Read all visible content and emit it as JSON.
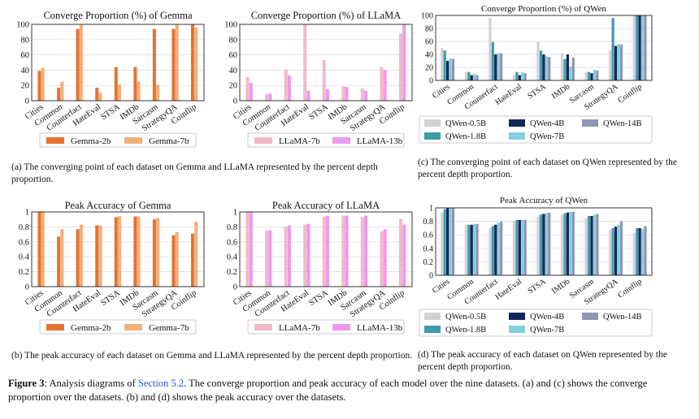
{
  "figure": {
    "label": "Figure 3",
    "text_before": ": Analysis diagrams of ",
    "section_link": "Section 5.2",
    "text_after": ". The converge proportion and peak accuracy of each model over the nine datasets. (a) and (c) shows the converge proportion over the datasets. (b) and (d) shows the peak accuracy over the datasets."
  },
  "captions": {
    "a": "(a) The converging point of each dataset on Gemma and LLaMA represented by the percent depth proportion.",
    "b": "(b) The peak accuracy of each dataset on Gemma and LLaMA represented by the percent depth proportion.",
    "c": "(c) The converging point of each dataset on QWen represented by the percent depth proportion.",
    "d": "(d) The peak accuracy of each dataset on QWen represented by the percent depth proportion."
  },
  "colors": {
    "gemma_2b": "#e4732f",
    "gemma_7b": "#f2b07b",
    "llama_7b": "#f2b9c9",
    "llama_13b": "#ec99ec",
    "qwen_0_5b": "#d2d2d2",
    "qwen_1_8b": "#3f9aae",
    "qwen_4b": "#13255a",
    "qwen_7b": "#82d0dc",
    "qwen_14b": "#8e96b2"
  },
  "chart_data": [
    {
      "id": "gemma_converge",
      "type": "bar",
      "title": "Converge Proportion (%) of Gemma",
      "categories": [
        "Cities",
        "Common",
        "Counterfact",
        "HateEval",
        "STSA",
        "IMDb",
        "Sarcasm",
        "StrategyQA",
        "Coinflip"
      ],
      "ylim": [
        0,
        100
      ],
      "yticks": [
        "0",
        "20",
        "40",
        "60",
        "80",
        "100"
      ],
      "ytick_values": [
        0,
        20,
        40,
        60,
        80,
        100
      ],
      "series": [
        {
          "name": "Gemma-2b",
          "color": "#e4732f",
          "values": [
            39,
            17,
            94,
            17,
            44,
            44,
            94,
            94,
            100
          ]
        },
        {
          "name": "Gemma-7b",
          "color": "#f2b07b",
          "values": [
            43,
            25,
            100,
            11,
            21,
            25,
            21,
            100,
            96
          ]
        }
      ]
    },
    {
      "id": "llama_converge",
      "type": "bar",
      "title": "Converge Proportion (%) of LLaMA",
      "categories": [
        "Cities",
        "Common",
        "Counterfact",
        "HateEval",
        "STSA",
        "IMDb",
        "Sarcasm",
        "StrategyQA",
        "Coinflip"
      ],
      "ylim": [
        0,
        100
      ],
      "yticks": [
        "0",
        "20",
        "40",
        "60",
        "80",
        "100"
      ],
      "ytick_values": [
        0,
        20,
        40,
        60,
        80,
        100
      ],
      "series": [
        {
          "name": "LLaMA-7b",
          "color": "#f2b9c9",
          "values": [
            31,
            9,
            41,
            100,
            53,
            19,
            16,
            44,
            88
          ]
        },
        {
          "name": "LLaMA-13b",
          "color": "#ec99ec",
          "values": [
            23,
            9,
            33,
            13,
            15,
            18,
            13,
            40,
            100
          ]
        }
      ]
    },
    {
      "id": "qwen_converge",
      "type": "bar",
      "title": "Converge Proportion (%) of QWen",
      "categories": [
        "Cities",
        "Common",
        "Counterfact",
        "HateEval",
        "STSA",
        "IMDb",
        "Sarcasm",
        "StrategyQA",
        "Coinflip"
      ],
      "ylim": [
        0,
        100
      ],
      "yticks": [
        "0",
        "20",
        "40",
        "60",
        "80",
        "100"
      ],
      "ytick_values": [
        0,
        20,
        40,
        60,
        80,
        100
      ],
      "series": [
        {
          "name": "QWen-0.5B",
          "color": "#d2d2d2",
          "values": [
            50,
            13,
            96,
            8,
            59,
            42,
            13,
            46,
            100
          ]
        },
        {
          "name": "QWen-1.8B",
          "color": "#3f9aae",
          "values": [
            46,
            13,
            59,
            13,
            46,
            33,
            13,
            96,
            100
          ]
        },
        {
          "name": "QWen-4B",
          "color": "#13255a",
          "values": [
            30,
            8,
            40,
            8,
            40,
            40,
            11,
            53,
            100
          ]
        },
        {
          "name": "QWen-7B",
          "color": "#82d0dc",
          "values": [
            34,
            10,
            42,
            13,
            37,
            21,
            16,
            56,
            100
          ]
        },
        {
          "name": "QWen-14B",
          "color": "#8e96b2",
          "values": [
            33,
            8,
            42,
            11,
            36,
            35,
            15,
            55,
            100
          ]
        }
      ]
    },
    {
      "id": "gemma_peak",
      "type": "bar",
      "title": "Peak Accuracy of Gemma",
      "categories": [
        "Cities",
        "Common",
        "Counterfact",
        "HateEval",
        "STSA",
        "IMDb",
        "Sarcasm",
        "StrategyQA",
        "Coinflip"
      ],
      "ylim": [
        0,
        1
      ],
      "yticks": [
        "0",
        "0.2",
        "0.4",
        "0.6",
        "0.8",
        "1"
      ],
      "ytick_values": [
        0,
        0.2,
        0.4,
        0.6,
        0.8,
        1
      ],
      "series": [
        {
          "name": "Gemma-2b",
          "color": "#e4732f",
          "values": [
            1.0,
            0.67,
            0.77,
            0.82,
            0.93,
            0.94,
            0.9,
            0.69,
            0.71
          ]
        },
        {
          "name": "Gemma-7b",
          "color": "#f2b07b",
          "values": [
            1.0,
            0.77,
            0.83,
            0.82,
            0.94,
            0.94,
            0.92,
            0.73,
            0.87
          ]
        }
      ]
    },
    {
      "id": "llama_peak",
      "type": "bar",
      "title": "Peak Accuracy of LLaMA",
      "categories": [
        "Cities",
        "Common",
        "Counterfact",
        "HateEval",
        "STSA",
        "IMDb",
        "Sarcasm",
        "StrategyQA",
        "Coinflip"
      ],
      "ylim": [
        0,
        1
      ],
      "yticks": [
        "0",
        "0.2",
        "0.4",
        "0.6",
        "0.8",
        "1"
      ],
      "ytick_values": [
        0,
        0.2,
        0.4,
        0.6,
        0.8,
        1
      ],
      "series": [
        {
          "name": "LLaMA-7b",
          "color": "#f2b9c9",
          "values": [
            1.0,
            0.75,
            0.8,
            0.83,
            0.94,
            0.95,
            0.93,
            0.74,
            0.91
          ]
        },
        {
          "name": "LLaMA-13b",
          "color": "#ec99ec",
          "values": [
            1.0,
            0.75,
            0.82,
            0.84,
            0.95,
            0.95,
            0.95,
            0.77,
            0.83
          ]
        }
      ]
    },
    {
      "id": "qwen_peak",
      "type": "bar",
      "title": "Peak Accuracy of QWen",
      "categories": [
        "Cities",
        "Common",
        "Counterfact",
        "HateEval",
        "STSA",
        "IMDb",
        "Sarcasm",
        "StrategyQA",
        "Coinflip"
      ],
      "ylim": [
        0,
        1
      ],
      "yticks": [
        "0",
        "0.2",
        "0.4",
        "0.6",
        "0.8",
        "1"
      ],
      "ytick_values": [
        0,
        0.2,
        0.4,
        0.6,
        0.8,
        1
      ],
      "series": [
        {
          "name": "QWen-0.5B",
          "color": "#d2d2d2",
          "values": [
            0.93,
            0.75,
            0.7,
            0.8,
            0.87,
            0.9,
            0.85,
            0.67,
            0.63
          ]
        },
        {
          "name": "QWen-1.8B",
          "color": "#3f9aae",
          "values": [
            0.98,
            0.75,
            0.73,
            0.82,
            0.9,
            0.92,
            0.88,
            0.7,
            0.7
          ]
        },
        {
          "name": "QWen-4B",
          "color": "#13255a",
          "values": [
            1.0,
            0.75,
            0.75,
            0.82,
            0.91,
            0.93,
            0.88,
            0.72,
            0.7
          ]
        },
        {
          "name": "QWen-7B",
          "color": "#82d0dc",
          "values": [
            1.0,
            0.76,
            0.78,
            0.82,
            0.92,
            0.94,
            0.9,
            0.75,
            0.69
          ]
        },
        {
          "name": "QWen-14B",
          "color": "#8e96b2",
          "values": [
            1.0,
            0.76,
            0.8,
            0.82,
            0.93,
            0.94,
            0.91,
            0.8,
            0.73
          ]
        }
      ]
    }
  ]
}
